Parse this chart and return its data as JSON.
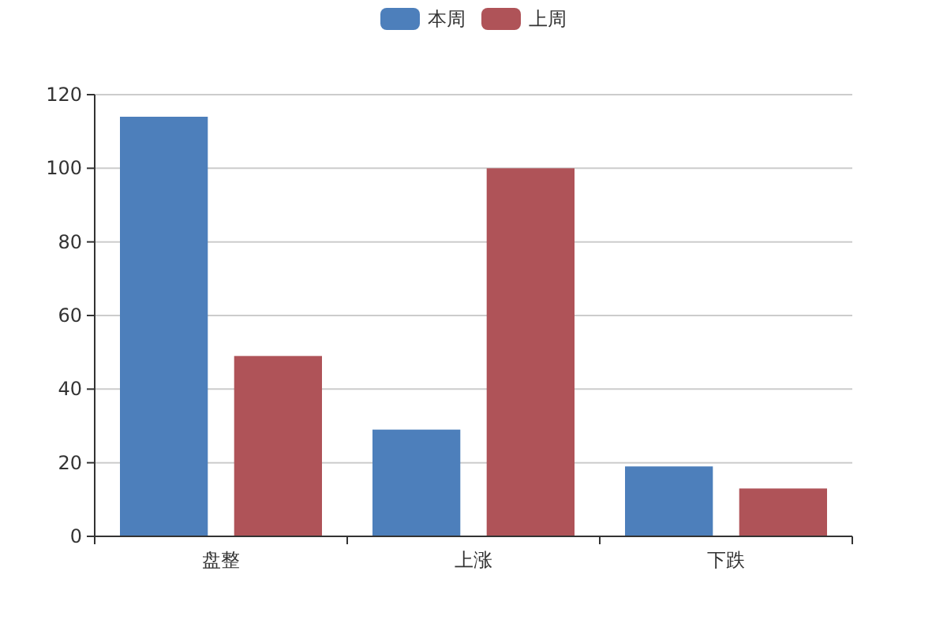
{
  "chart_data": {
    "type": "bar",
    "categories": [
      "盘整",
      "上涨",
      "下跌"
    ],
    "series": [
      {
        "name": "本周",
        "color": "#4d7fbb",
        "values": [
          114,
          29,
          19
        ]
      },
      {
        "name": "上周",
        "color": "#af5358",
        "values": [
          49,
          100,
          13
        ]
      }
    ],
    "ylim": [
      0,
      120
    ],
    "yticks": [
      0,
      20,
      40,
      60,
      80,
      100,
      120
    ],
    "grid": "y",
    "legend": "top"
  }
}
